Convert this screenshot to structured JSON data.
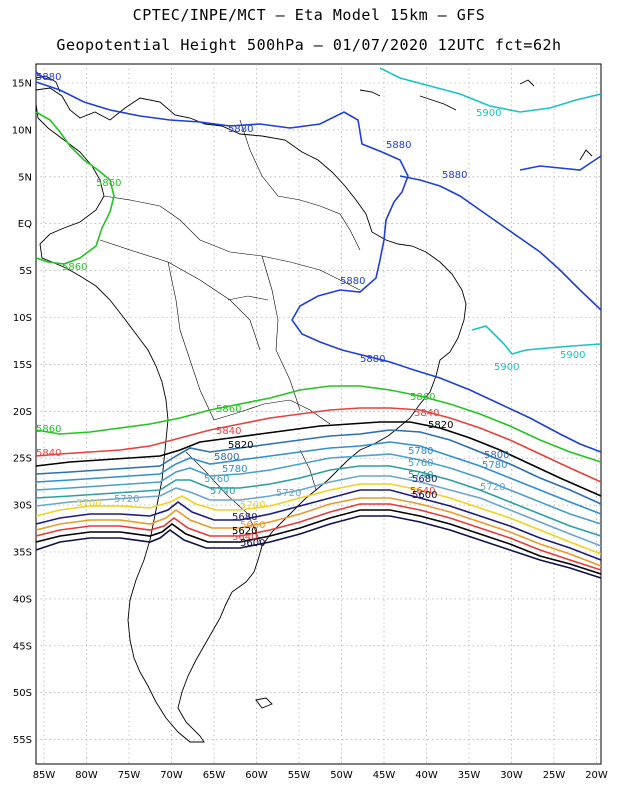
{
  "title_line1": "CPTEC/INPE/MCT –  Eta Model 15km – GFS",
  "title_line2": "Geopotential Height 500hPa – 01/07/2020 12UTC fct=62h",
  "lat_ticks": [
    "15N",
    "10N",
    "5N",
    "EQ",
    "5S",
    "10S",
    "15S",
    "20S",
    "25S",
    "30S",
    "35S",
    "40S",
    "45S",
    "50S",
    "55S"
  ],
  "lon_ticks": [
    "85W",
    "80W",
    "75W",
    "70W",
    "65W",
    "60W",
    "55W",
    "50W",
    "45W",
    "40W",
    "35W",
    "30W",
    "25W",
    "20W"
  ],
  "contours": [
    {
      "level": "5900",
      "color": "#19c3c3"
    },
    {
      "level": "5880",
      "color": "#1f3fd6"
    },
    {
      "level": "5860",
      "color": "#22c41f"
    },
    {
      "level": "5840",
      "color": "#e8403a"
    },
    {
      "level": "5820",
      "color": "#000000"
    },
    {
      "level": "5800",
      "color": "#2d6fb0"
    },
    {
      "level": "5780",
      "color": "#2f8fd0"
    },
    {
      "level": "5760",
      "color": "#49a0c8"
    },
    {
      "level": "5740",
      "color": "#2a9fa0"
    },
    {
      "level": "5720",
      "color": "#6aa6cc"
    },
    {
      "level": "5700",
      "color": "#f0d21f"
    },
    {
      "level": "5680",
      "color": "#1a1a80"
    },
    {
      "level": "5660",
      "color": "#e89a2a"
    },
    {
      "level": "5640",
      "color": "#e83a3a"
    },
    {
      "level": "5620",
      "color": "#000000"
    },
    {
      "level": "5600",
      "color": "#10104a"
    }
  ]
}
